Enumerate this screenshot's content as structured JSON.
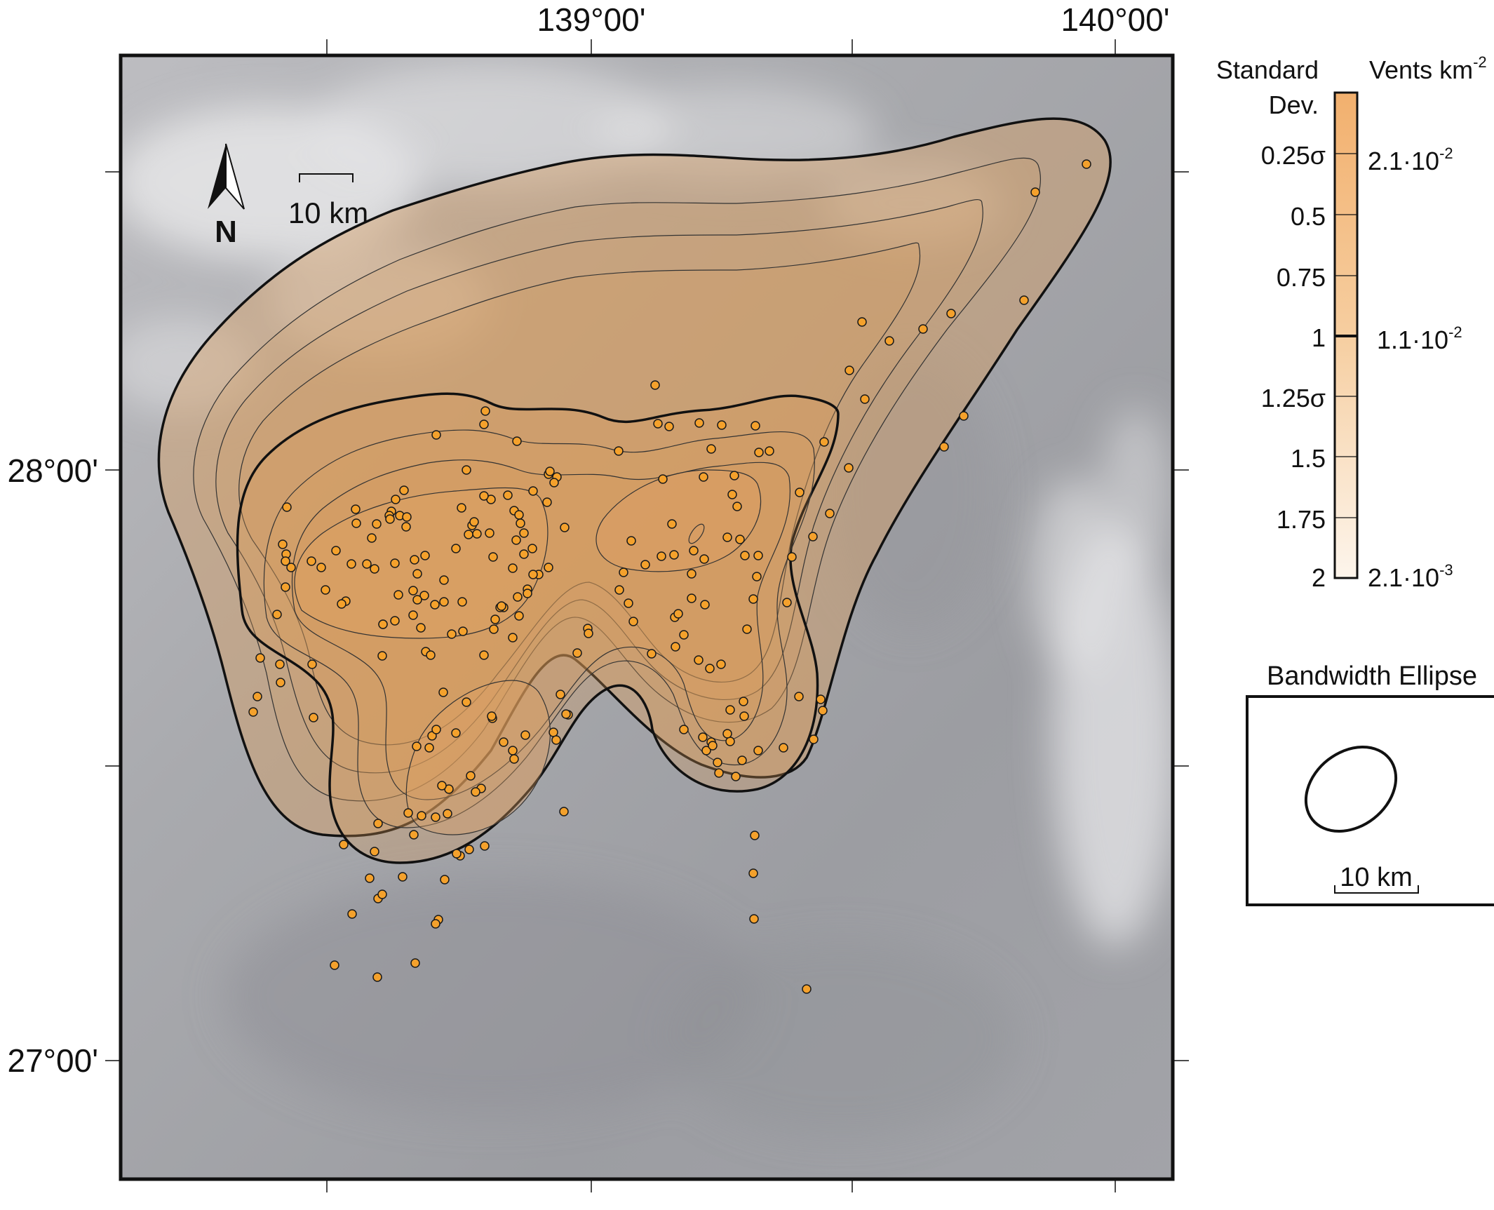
{
  "map": {
    "lon_labels": [
      "139°00'",
      "140°00'"
    ],
    "lat_labels": [
      "28°00'",
      "27°00'"
    ],
    "north_arrow": {
      "icon": "north-arrow-icon",
      "label": "N"
    },
    "scale_bar": {
      "label": "10 km"
    }
  },
  "legend": {
    "left_header": "Standard Dev.",
    "left_header_line1": "Standard",
    "left_header_line2": "Dev.",
    "right_header": "Vents km-2",
    "right_header_base": "Vents km",
    "right_header_exp": "-2",
    "sigma_labels": [
      "0.25σ",
      "0.5",
      "0.75",
      "1",
      "1.25σ",
      "1.5",
      "1.75",
      "2"
    ],
    "density_top_base": "2.1·10",
    "density_top_exp": "-2",
    "density_mid_base": "1.1·10",
    "density_mid_exp": "-2",
    "density_bottom_base": "2.1·10",
    "density_bottom_exp": "-3",
    "color_high": "#f2b06e",
    "color_low": "#fdf5ec"
  },
  "bandwidth": {
    "title": "Bandwidth Ellipse",
    "scale_label": "10 km"
  },
  "colors": {
    "vent_fill": "#f4a12c",
    "density_fill": "#d89c5c",
    "contour": "#111111"
  }
}
